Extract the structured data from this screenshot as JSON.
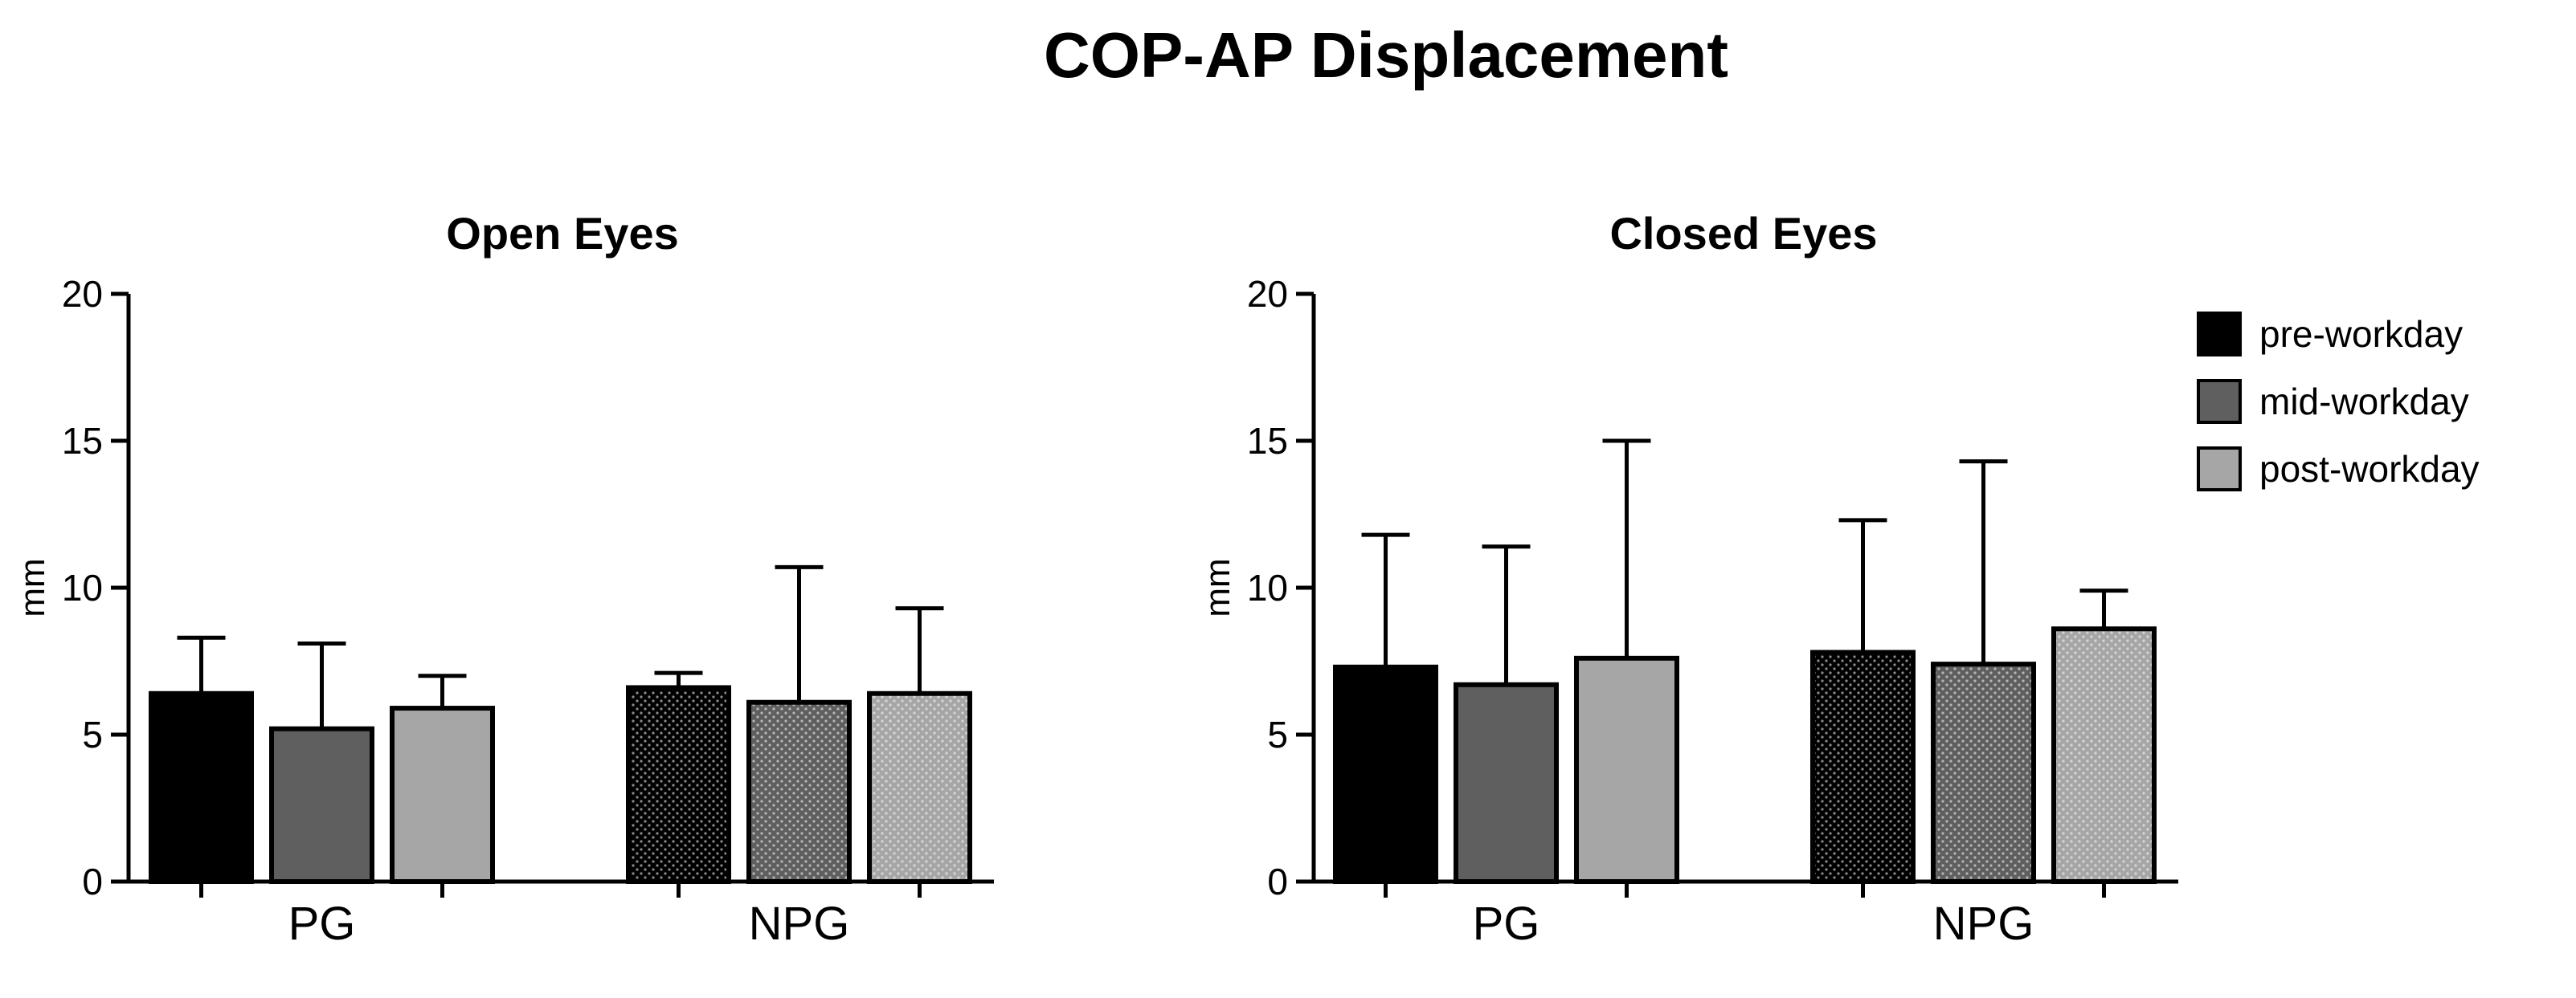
{
  "title": "COP-AP Displacement",
  "legend": {
    "position": "right",
    "items": [
      {
        "label": "pre-workday",
        "color": "#000000"
      },
      {
        "label": "mid-workday",
        "color": "#5f5f5f"
      },
      {
        "label": "post-workday",
        "color": "#a6a6a6"
      }
    ]
  },
  "chart_data": [
    {
      "type": "bar",
      "title": "Open Eyes",
      "xlabel": "",
      "ylabel": "mm",
      "ylim": [
        0,
        20
      ],
      "yticks": [
        0,
        5,
        10,
        15,
        20
      ],
      "categories": [
        "PG",
        "NPG"
      ],
      "series": [
        {
          "name": "pre-workday",
          "values": [
            6.4,
            6.6
          ],
          "errors": [
            1.9,
            0.5
          ]
        },
        {
          "name": "mid-workday",
          "values": [
            5.2,
            6.1
          ],
          "errors": [
            2.9,
            4.6
          ]
        },
        {
          "name": "post-workday",
          "values": [
            5.9,
            6.4
          ],
          "errors": [
            1.1,
            2.9
          ]
        }
      ],
      "patterned_group": "NPG"
    },
    {
      "type": "bar",
      "title": "Closed Eyes",
      "xlabel": "",
      "ylabel": "mm",
      "ylim": [
        0,
        20
      ],
      "yticks": [
        0,
        5,
        10,
        15,
        20
      ],
      "categories": [
        "PG",
        "NPG"
      ],
      "series": [
        {
          "name": "pre-workday",
          "values": [
            7.3,
            7.8
          ],
          "errors": [
            4.5,
            4.5
          ]
        },
        {
          "name": "mid-workday",
          "values": [
            6.7,
            7.4
          ],
          "errors": [
            4.7,
            6.9
          ]
        },
        {
          "name": "post-workday",
          "values": [
            7.6,
            8.6
          ],
          "errors": [
            7.4,
            1.3
          ]
        }
      ],
      "patterned_group": "NPG"
    }
  ]
}
